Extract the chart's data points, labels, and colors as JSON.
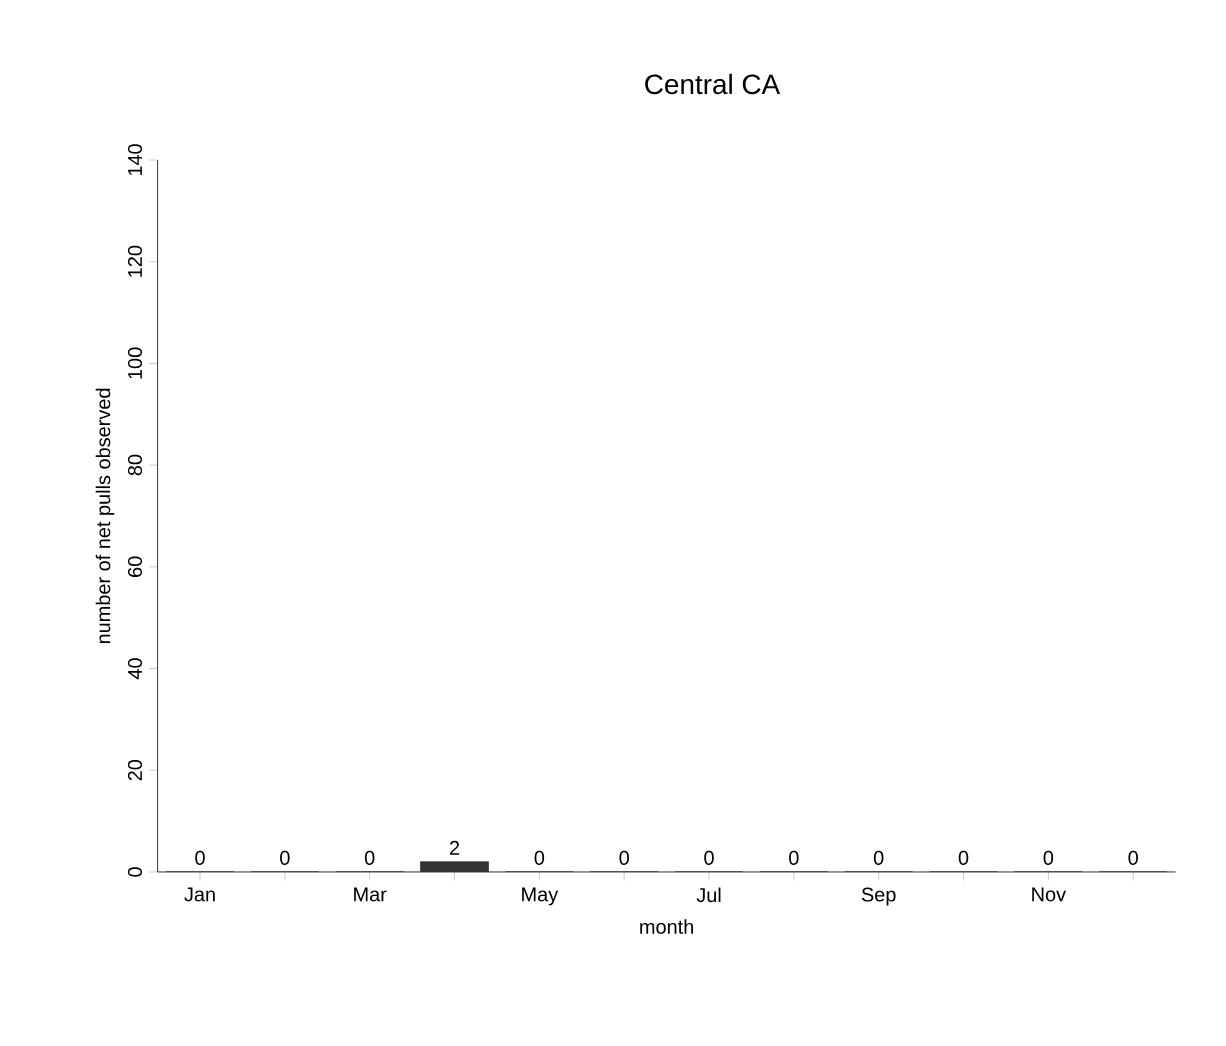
{
  "chart_data": {
    "type": "bar",
    "title": "Central CA",
    "xlabel": "month",
    "ylabel": "number of net pulls observed",
    "categories": [
      "Jan",
      null,
      "Mar",
      null,
      "May",
      null,
      "Jul",
      null,
      "Sep",
      null,
      "Nov",
      null
    ],
    "values": [
      0,
      0,
      0,
      2,
      0,
      0,
      0,
      0,
      0,
      0,
      0,
      0
    ],
    "color": "#333333",
    "data_labels": true,
    "ylim": [
      0,
      140
    ],
    "yticks": [
      0,
      20,
      40,
      60,
      80,
      100,
      120,
      140
    ],
    "grid": false
  }
}
